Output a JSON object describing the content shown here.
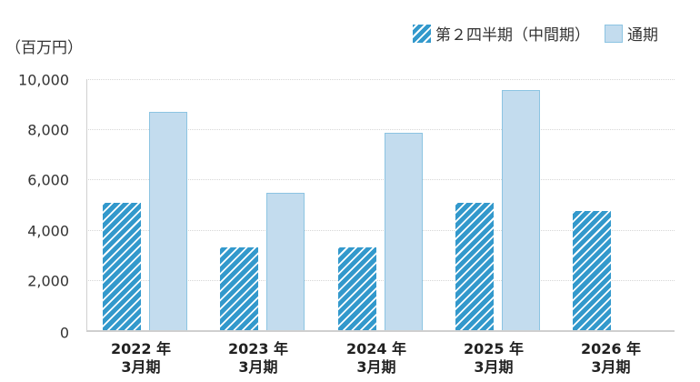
{
  "legend": {
    "h1_label": "第２四半期（中間期）",
    "full_label": "通期"
  },
  "axis": {
    "unit": "（百万円）",
    "y_ticks": [
      "10,000",
      "8,000",
      "6,000",
      "4,000",
      "2,000",
      "0"
    ]
  },
  "x_labels": [
    {
      "year": "2022 年",
      "period": "3月期"
    },
    {
      "year": "2023 年",
      "period": "3月期"
    },
    {
      "year": "2024 年",
      "period": "3月期"
    },
    {
      "year": "2025 年",
      "period": "3月期"
    },
    {
      "year": "2026 年",
      "period": "3月期"
    }
  ],
  "colors": {
    "h1": "#3399cc",
    "full_fill": "#c3dcee",
    "full_border": "#8cc4e2"
  },
  "chart_data": {
    "type": "bar",
    "title": "",
    "xlabel": "",
    "ylabel": "（百万円）",
    "ylim": [
      0,
      10000
    ],
    "grid": true,
    "legend_position": "top-right",
    "categories": [
      "2022年3月期",
      "2023年3月期",
      "2024年3月期",
      "2025年3月期",
      "2026年3月期"
    ],
    "series": [
      {
        "name": "第２四半期（中間期）",
        "values": [
          5090,
          3320,
          3320,
          5090,
          4770
        ],
        "style": "hatched"
      },
      {
        "name": "通期",
        "values": [
          8700,
          5490,
          7870,
          9570,
          null
        ],
        "style": "solid"
      }
    ]
  }
}
